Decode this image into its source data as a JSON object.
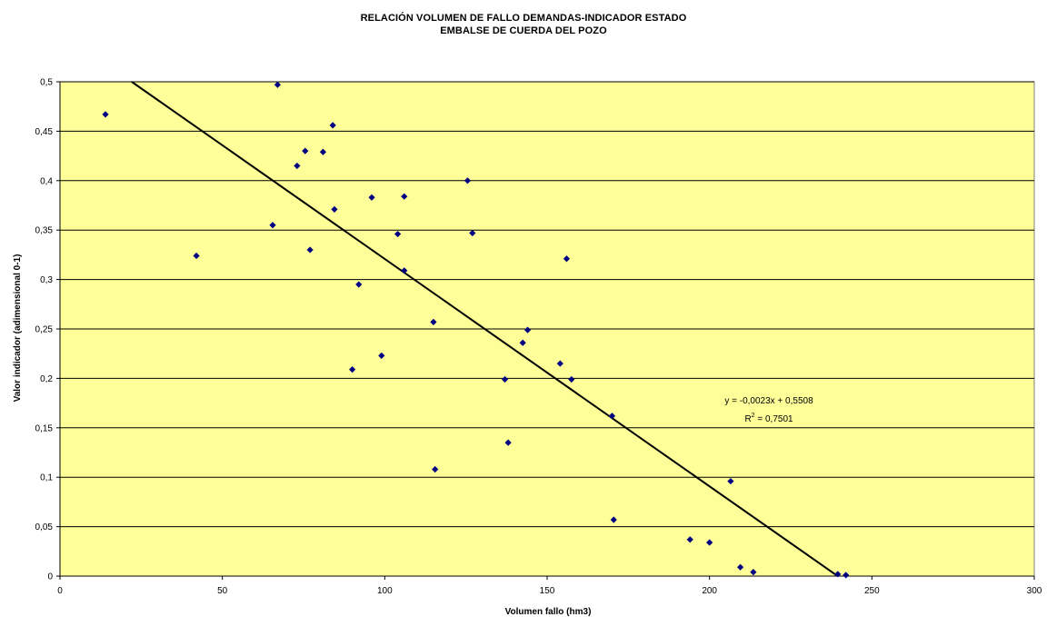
{
  "chart_data": {
    "type": "scatter",
    "title": "RELACIÓN VOLUMEN DE FALLO DEMANDAS-INDICADOR ESTADO",
    "subtitle": "EMBALSE DE CUERDA DEL POZO",
    "xlabel": "Volumen fallo (hm3)",
    "ylabel": "Valor indicador (adimensional 0-1)",
    "xlim": [
      0,
      300
    ],
    "ylim": [
      0,
      0.5
    ],
    "x_ticks": [
      0,
      50,
      100,
      150,
      200,
      250,
      300
    ],
    "x_tick_labels": [
      "0",
      "50",
      "100",
      "150",
      "200",
      "250",
      "300"
    ],
    "y_ticks": [
      0,
      0.05,
      0.1,
      0.15,
      0.2,
      0.25,
      0.3,
      0.35,
      0.4,
      0.45,
      0.5
    ],
    "y_tick_labels": [
      "0",
      "0,05",
      "0,1",
      "0,15",
      "0,2",
      "0,25",
      "0,3",
      "0,35",
      "0,4",
      "0,45",
      "0,5"
    ],
    "grid": "horizontal",
    "plot_background": "#FFFF99",
    "marker_color": "#000080",
    "trendline": {
      "slope": -0.0023,
      "intercept": 0.5508,
      "equation_label": "y = -0,0023x + 0,5508",
      "r2_prefix": "R",
      "r2_sup": "2",
      "r2_value": " = 0,7501"
    },
    "points": [
      {
        "x": 14,
        "y": 0.467
      },
      {
        "x": 42,
        "y": 0.324
      },
      {
        "x": 65.5,
        "y": 0.355
      },
      {
        "x": 67,
        "y": 0.497
      },
      {
        "x": 73,
        "y": 0.415
      },
      {
        "x": 75.5,
        "y": 0.43
      },
      {
        "x": 77,
        "y": 0.33
      },
      {
        "x": 81,
        "y": 0.429
      },
      {
        "x": 84,
        "y": 0.456
      },
      {
        "x": 84.5,
        "y": 0.371
      },
      {
        "x": 90,
        "y": 0.209
      },
      {
        "x": 92,
        "y": 0.295
      },
      {
        "x": 96,
        "y": 0.383
      },
      {
        "x": 99,
        "y": 0.223
      },
      {
        "x": 104,
        "y": 0.346
      },
      {
        "x": 106,
        "y": 0.384
      },
      {
        "x": 106,
        "y": 0.309
      },
      {
        "x": 115,
        "y": 0.257
      },
      {
        "x": 115.5,
        "y": 0.108
      },
      {
        "x": 125.5,
        "y": 0.4
      },
      {
        "x": 127,
        "y": 0.347
      },
      {
        "x": 137,
        "y": 0.199
      },
      {
        "x": 138,
        "y": 0.135
      },
      {
        "x": 142.5,
        "y": 0.236
      },
      {
        "x": 144,
        "y": 0.249
      },
      {
        "x": 154,
        "y": 0.215
      },
      {
        "x": 156,
        "y": 0.321
      },
      {
        "x": 157.5,
        "y": 0.199
      },
      {
        "x": 170,
        "y": 0.162
      },
      {
        "x": 170.5,
        "y": 0.057
      },
      {
        "x": 194,
        "y": 0.037
      },
      {
        "x": 200,
        "y": 0.034
      },
      {
        "x": 206.5,
        "y": 0.096
      },
      {
        "x": 209.5,
        "y": 0.009
      },
      {
        "x": 213.5,
        "y": 0.004
      },
      {
        "x": 239.5,
        "y": 0.002
      },
      {
        "x": 242,
        "y": 0.001
      }
    ]
  }
}
